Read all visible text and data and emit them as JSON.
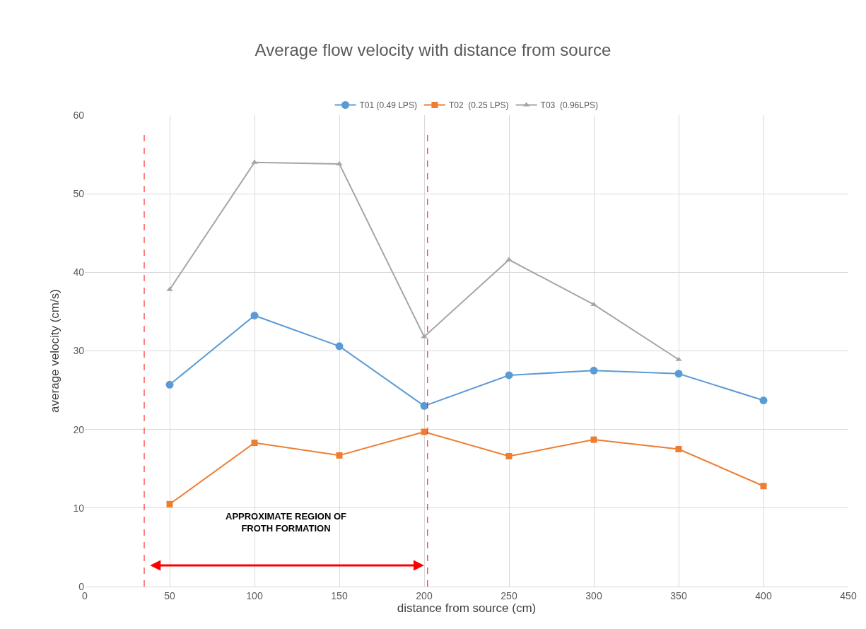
{
  "chart_data": {
    "type": "line",
    "title": "Average flow velocity with distance from source",
    "xlabel": "distance from source (cm)",
    "ylabel": "average velocity (cm/s)",
    "series": [
      {
        "name": "T01 (0.49 LPS)",
        "color": "#5b9bd5",
        "marker": "circle",
        "x": [
          50,
          100,
          150,
          200,
          250,
          300,
          350,
          400
        ],
        "values": [
          25.7,
          34.5,
          30.6,
          23.0,
          26.9,
          27.5,
          27.1,
          23.7
        ]
      },
      {
        "name": "T02  (0.25 LPS)",
        "color": "#ed7d31",
        "marker": "square",
        "x": [
          50,
          100,
          150,
          200,
          250,
          300,
          350,
          400
        ],
        "values": [
          10.5,
          18.3,
          16.7,
          19.7,
          16.6,
          18.7,
          17.5,
          12.8
        ]
      },
      {
        "name": "T03  (0.96LPS)",
        "color": "#a5a5a5",
        "marker": "triangle",
        "x": [
          50,
          100,
          150,
          200,
          250,
          300,
          350
        ],
        "values": [
          37.8,
          54.0,
          53.8,
          31.8,
          41.6,
          35.9,
          28.9
        ]
      }
    ],
    "xlim": [
      0,
      450
    ],
    "xticks": [
      0,
      50,
      100,
      150,
      200,
      250,
      300,
      350,
      400,
      450
    ],
    "ylim": [
      0,
      60
    ],
    "yticks": [
      0,
      10,
      20,
      30,
      40,
      50,
      60
    ],
    "grid": true,
    "legend": "top",
    "ref_lines": [
      {
        "axis": "x",
        "value": 35,
        "color": "#ff0000",
        "line_style": "dashed"
      },
      {
        "axis": "x",
        "value": 202,
        "color": "#ff0000",
        "line_style": "dashed"
      }
    ],
    "annotations": [
      "APPROXIMATE REGION OF\nFROTH FORMATION"
    ]
  }
}
